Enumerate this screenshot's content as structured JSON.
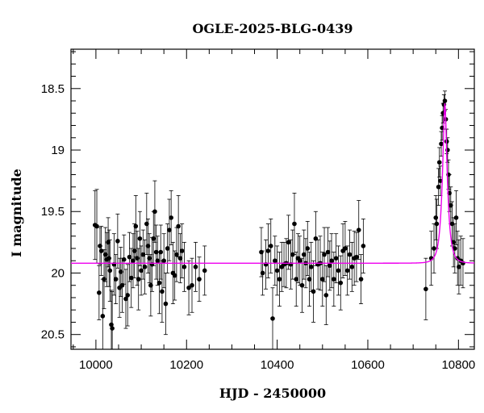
{
  "chart_data": {
    "type": "scatter",
    "title": "OGLE-2025-BLG-0439",
    "xlabel": "HJD - 2450000",
    "ylabel": "I magnitude",
    "xlim": [
      9945,
      10835
    ],
    "ylim": [
      20.62,
      18.18
    ],
    "y_inverted": true,
    "grid": false,
    "x_ticks": [
      10000,
      10200,
      10400,
      10600,
      10800
    ],
    "x_tick_labels": [
      "10000",
      "10200",
      "10400",
      "10600",
      "10800"
    ],
    "y_ticks": [
      18.5,
      19,
      19.5,
      20,
      20.5
    ],
    "y_tick_labels": [
      "18.5",
      "19",
      "19.5",
      "20",
      "20.5"
    ],
    "colors": {
      "points": "#000000",
      "model": "#ee00ee"
    },
    "model": {
      "baseline": 19.92,
      "t0": 10770,
      "peak": 18.62,
      "tE": 11
    },
    "points": [
      {
        "x": 9998,
        "y": 19.61,
        "err": 0.28
      },
      {
        "x": 10002,
        "y": 19.62,
        "err": 0.3
      },
      {
        "x": 10007,
        "y": 20.16,
        "err": 0.22
      },
      {
        "x": 10009,
        "y": 19.78,
        "err": 0.15
      },
      {
        "x": 10012,
        "y": 19.82,
        "err": 0.2
      },
      {
        "x": 10015,
        "y": 20.35,
        "err": 0.3
      },
      {
        "x": 10018,
        "y": 20.05,
        "err": 0.24
      },
      {
        "x": 10021,
        "y": 19.85,
        "err": 0.22
      },
      {
        "x": 10024,
        "y": 19.89,
        "err": 0.22
      },
      {
        "x": 10027,
        "y": 19.75,
        "err": 0.2
      },
      {
        "x": 10029,
        "y": 19.88,
        "err": 0.23
      },
      {
        "x": 10031,
        "y": 19.98,
        "err": 0.25
      },
      {
        "x": 10034,
        "y": 20.42,
        "err": 0.28
      },
      {
        "x": 10036,
        "y": 20.45,
        "err": 0.3
      },
      {
        "x": 10040,
        "y": 19.93,
        "err": 0.25
      },
      {
        "x": 10044,
        "y": 20.05,
        "err": 0.2
      },
      {
        "x": 10048,
        "y": 19.74,
        "err": 0.22
      },
      {
        "x": 10052,
        "y": 20.12,
        "err": 0.24
      },
      {
        "x": 10055,
        "y": 19.99,
        "err": 0.2
      },
      {
        "x": 10058,
        "y": 20.1,
        "err": 0.22
      },
      {
        "x": 10062,
        "y": 19.89,
        "err": 0.2
      },
      {
        "x": 10066,
        "y": 20.21,
        "err": 0.24
      },
      {
        "x": 10070,
        "y": 20.18,
        "err": 0.25
      },
      {
        "x": 10074,
        "y": 19.87,
        "err": 0.2
      },
      {
        "x": 10078,
        "y": 20.04,
        "err": 0.24
      },
      {
        "x": 10082,
        "y": 19.9,
        "err": 0.22
      },
      {
        "x": 10085,
        "y": 19.82,
        "err": 0.22
      },
      {
        "x": 10088,
        "y": 19.62,
        "err": 0.25
      },
      {
        "x": 10091,
        "y": 19.88,
        "err": 0.22
      },
      {
        "x": 10094,
        "y": 20.05,
        "err": 0.25
      },
      {
        "x": 10097,
        "y": 19.72,
        "err": 0.22
      },
      {
        "x": 10100,
        "y": 19.98,
        "err": 0.2
      },
      {
        "x": 10104,
        "y": 19.85,
        "err": 0.2
      },
      {
        "x": 10108,
        "y": 19.95,
        "err": 0.22
      },
      {
        "x": 10112,
        "y": 19.6,
        "err": 0.25
      },
      {
        "x": 10115,
        "y": 19.78,
        "err": 0.22
      },
      {
        "x": 10118,
        "y": 19.88,
        "err": 0.2
      },
      {
        "x": 10121,
        "y": 20.1,
        "err": 0.25
      },
      {
        "x": 10124,
        "y": 19.93,
        "err": 0.22
      },
      {
        "x": 10127,
        "y": 19.72,
        "err": 0.22
      },
      {
        "x": 10130,
        "y": 19.5,
        "err": 0.25
      },
      {
        "x": 10133,
        "y": 19.83,
        "err": 0.22
      },
      {
        "x": 10136,
        "y": 19.9,
        "err": 0.2
      },
      {
        "x": 10140,
        "y": 20.08,
        "err": 0.25
      },
      {
        "x": 10143,
        "y": 19.83,
        "err": 0.22
      },
      {
        "x": 10146,
        "y": 20.15,
        "err": 0.25
      },
      {
        "x": 10150,
        "y": 19.9,
        "err": 0.22
      },
      {
        "x": 10154,
        "y": 20.25,
        "err": 0.25
      },
      {
        "x": 10158,
        "y": 19.8,
        "err": 0.2
      },
      {
        "x": 10162,
        "y": 19.65,
        "err": 0.25
      },
      {
        "x": 10166,
        "y": 19.55,
        "err": 0.22
      },
      {
        "x": 10170,
        "y": 20.0,
        "err": 0.25
      },
      {
        "x": 10174,
        "y": 20.02,
        "err": 0.2
      },
      {
        "x": 10178,
        "y": 19.85,
        "err": 0.22
      },
      {
        "x": 10182,
        "y": 19.62,
        "err": 0.25
      },
      {
        "x": 10186,
        "y": 19.88,
        "err": 0.2
      },
      {
        "x": 10190,
        "y": 19.82,
        "err": 0.22
      },
      {
        "x": 10195,
        "y": 19.95,
        "err": 0.2
      },
      {
        "x": 10205,
        "y": 20.12,
        "err": 0.22
      },
      {
        "x": 10212,
        "y": 20.1,
        "err": 0.22
      },
      {
        "x": 10220,
        "y": 19.95,
        "err": 0.2
      },
      {
        "x": 10228,
        "y": 20.05,
        "err": 0.18
      },
      {
        "x": 10240,
        "y": 19.98,
        "err": 0.2
      },
      {
        "x": 10365,
        "y": 19.83,
        "err": 0.2
      },
      {
        "x": 10368,
        "y": 20.0,
        "err": 0.18
      },
      {
        "x": 10375,
        "y": 19.93,
        "err": 0.2
      },
      {
        "x": 10380,
        "y": 19.82,
        "err": 0.22
      },
      {
        "x": 10386,
        "y": 19.78,
        "err": 0.22
      },
      {
        "x": 10390,
        "y": 20.37,
        "err": 0.25
      },
      {
        "x": 10395,
        "y": 19.9,
        "err": 0.2
      },
      {
        "x": 10400,
        "y": 19.98,
        "err": 0.2
      },
      {
        "x": 10405,
        "y": 20.05,
        "err": 0.22
      },
      {
        "x": 10410,
        "y": 19.95,
        "err": 0.2
      },
      {
        "x": 10415,
        "y": 19.93,
        "err": 0.18
      },
      {
        "x": 10420,
        "y": 19.92,
        "err": 0.2
      },
      {
        "x": 10425,
        "y": 19.75,
        "err": 0.22
      },
      {
        "x": 10430,
        "y": 19.93,
        "err": 0.2
      },
      {
        "x": 10434,
        "y": 19.85,
        "err": 0.2
      },
      {
        "x": 10438,
        "y": 19.6,
        "err": 0.25
      },
      {
        "x": 10442,
        "y": 20.05,
        "err": 0.22
      },
      {
        "x": 10446,
        "y": 19.88,
        "err": 0.2
      },
      {
        "x": 10450,
        "y": 19.9,
        "err": 0.2
      },
      {
        "x": 10455,
        "y": 20.1,
        "err": 0.22
      },
      {
        "x": 10459,
        "y": 19.85,
        "err": 0.2
      },
      {
        "x": 10463,
        "y": 19.92,
        "err": 0.2
      },
      {
        "x": 10467,
        "y": 19.8,
        "err": 0.22
      },
      {
        "x": 10471,
        "y": 20.05,
        "err": 0.22
      },
      {
        "x": 10475,
        "y": 19.95,
        "err": 0.2
      },
      {
        "x": 10480,
        "y": 20.15,
        "err": 0.25
      },
      {
        "x": 10485,
        "y": 19.72,
        "err": 0.22
      },
      {
        "x": 10490,
        "y": 19.93,
        "err": 0.2
      },
      {
        "x": 10495,
        "y": 19.92,
        "err": 0.22
      },
      {
        "x": 10500,
        "y": 20.05,
        "err": 0.22
      },
      {
        "x": 10504,
        "y": 19.85,
        "err": 0.22
      },
      {
        "x": 10508,
        "y": 20.18,
        "err": 0.24
      },
      {
        "x": 10512,
        "y": 19.83,
        "err": 0.2
      },
      {
        "x": 10516,
        "y": 19.94,
        "err": 0.2
      },
      {
        "x": 10520,
        "y": 19.9,
        "err": 0.22
      },
      {
        "x": 10525,
        "y": 20.05,
        "err": 0.22
      },
      {
        "x": 10530,
        "y": 19.88,
        "err": 0.2
      },
      {
        "x": 10535,
        "y": 19.98,
        "err": 0.2
      },
      {
        "x": 10540,
        "y": 20.08,
        "err": 0.22
      },
      {
        "x": 10545,
        "y": 19.82,
        "err": 0.22
      },
      {
        "x": 10550,
        "y": 19.8,
        "err": 0.22
      },
      {
        "x": 10555,
        "y": 19.98,
        "err": 0.2
      },
      {
        "x": 10560,
        "y": 19.85,
        "err": 0.2
      },
      {
        "x": 10565,
        "y": 19.95,
        "err": 0.2
      },
      {
        "x": 10570,
        "y": 19.88,
        "err": 0.22
      },
      {
        "x": 10575,
        "y": 19.87,
        "err": 0.2
      },
      {
        "x": 10580,
        "y": 19.65,
        "err": 0.24
      },
      {
        "x": 10585,
        "y": 20.05,
        "err": 0.2
      },
      {
        "x": 10590,
        "y": 19.78,
        "err": 0.22
      },
      {
        "x": 10728,
        "y": 20.13,
        "err": 0.25
      },
      {
        "x": 10740,
        "y": 19.88,
        "err": 0.22
      },
      {
        "x": 10746,
        "y": 19.8,
        "err": 0.2
      },
      {
        "x": 10750,
        "y": 19.55,
        "err": 0.18
      },
      {
        "x": 10752,
        "y": 19.6,
        "err": 0.2
      },
      {
        "x": 10756,
        "y": 19.3,
        "err": 0.15
      },
      {
        "x": 10758,
        "y": 19.1,
        "err": 0.12
      },
      {
        "x": 10760,
        "y": 19.25,
        "err": 0.12
      },
      {
        "x": 10762,
        "y": 18.95,
        "err": 0.1
      },
      {
        "x": 10764,
        "y": 18.82,
        "err": 0.1
      },
      {
        "x": 10766,
        "y": 18.7,
        "err": 0.08
      },
      {
        "x": 10768,
        "y": 18.63,
        "err": 0.08
      },
      {
        "x": 10770,
        "y": 18.6,
        "err": 0.08
      },
      {
        "x": 10772,
        "y": 18.75,
        "err": 0.08
      },
      {
        "x": 10774,
        "y": 18.93,
        "err": 0.1
      },
      {
        "x": 10776,
        "y": 19.0,
        "err": 0.1
      },
      {
        "x": 10778,
        "y": 19.2,
        "err": 0.12
      },
      {
        "x": 10780,
        "y": 19.35,
        "err": 0.15
      },
      {
        "x": 10783,
        "y": 19.45,
        "err": 0.15
      },
      {
        "x": 10786,
        "y": 19.6,
        "err": 0.18
      },
      {
        "x": 10789,
        "y": 19.75,
        "err": 0.2
      },
      {
        "x": 10792,
        "y": 19.8,
        "err": 0.2
      },
      {
        "x": 10795,
        "y": 19.55,
        "err": 0.22
      },
      {
        "x": 10798,
        "y": 19.88,
        "err": 0.22
      },
      {
        "x": 10801,
        "y": 19.95,
        "err": 0.22
      },
      {
        "x": 10805,
        "y": 19.9,
        "err": 0.2
      },
      {
        "x": 10810,
        "y": 19.92,
        "err": 0.2
      }
    ]
  }
}
